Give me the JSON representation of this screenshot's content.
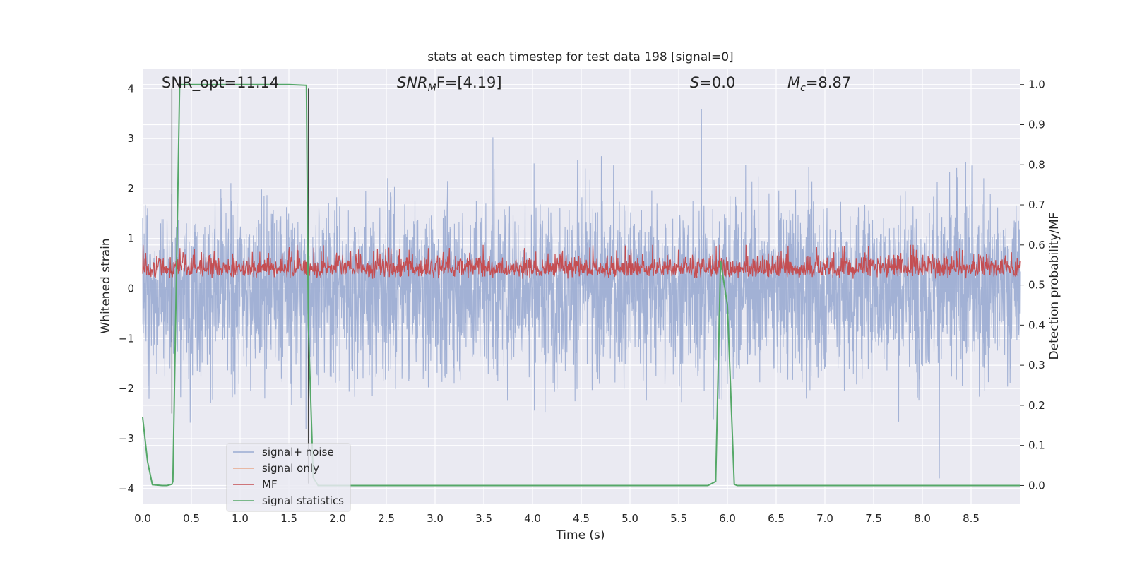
{
  "chart_data": {
    "type": "line",
    "title": "stats at each timestep for test data 198 [signal=0]",
    "xlabel": "Time (s)",
    "ylabel_left": "Whitened strain",
    "ylabel_right": "Detection probability/MF",
    "xlim": [
      0,
      9.0
    ],
    "ylim_left": [
      -4.3,
      4.4
    ],
    "ylim_right": [
      -0.045,
      1.04
    ],
    "xticks": [
      "0.0",
      "0.5",
      "1.0",
      "1.5",
      "2.0",
      "2.5",
      "3.0",
      "3.5",
      "4.0",
      "4.5",
      "5.0",
      "5.5",
      "6.0",
      "6.5",
      "7.0",
      "7.5",
      "8.0",
      "8.5"
    ],
    "yticks_left": [
      "4",
      "3",
      "2",
      "1",
      "0",
      "−1",
      "−2",
      "−3",
      "−4"
    ],
    "yticks_right": [
      "1.0",
      "0.9",
      "0.8",
      "0.7",
      "0.6",
      "0.5",
      "0.4",
      "0.3",
      "0.2",
      "0.1",
      "0.0"
    ],
    "grid": true,
    "legend_position": "lower-left",
    "annotations": {
      "snr_opt": "SNR_opt=11.14",
      "snr_mf_prefix": "SNR",
      "snr_mf_sub": "M",
      "snr_mf_suffix": "F=[4.19]",
      "s_label": "S",
      "s_value": "=0.0",
      "mc_label": "M",
      "mc_sub": "c",
      "mc_value": "=8.87"
    },
    "colors": {
      "noise": "#9aabd1",
      "signal_only": "#e8a88a",
      "mf": "#c44e52",
      "stats": "#55a868",
      "background": "#eaeaf2",
      "grid": "#ffffff"
    },
    "series": [
      {
        "name": "signal+ noise",
        "axis": "left",
        "description": "dense noise, roughly uniform amplitude about ±2 with peaks to about ±4",
        "amplitude_envelope": [
          -4.0,
          4.0
        ]
      },
      {
        "name": "signal only",
        "axis": "left",
        "values": []
      },
      {
        "name": "MF",
        "axis": "right",
        "description": "noisy band between about 0.5 and 0.6",
        "range": [
          0.49,
          0.6
        ]
      },
      {
        "name": "signal statistics",
        "axis": "right",
        "x": [
          0.0,
          0.05,
          0.1,
          0.2,
          0.25,
          0.3,
          0.31,
          0.38,
          0.5,
          1.0,
          1.5,
          1.68,
          1.7,
          1.75,
          1.8,
          2.0,
          3.0,
          4.0,
          5.0,
          5.8,
          5.88,
          5.93,
          6.0,
          6.07,
          6.1,
          7.0,
          8.0,
          9.0
        ],
        "y": [
          0.17,
          0.06,
          0.002,
          0.0,
          0.0,
          0.003,
          0.01,
          1.0,
          1.0,
          1.0,
          1.0,
          0.998,
          0.4,
          0.02,
          0.0,
          0.0,
          0.0,
          0.0,
          0.0,
          0.0,
          0.01,
          0.56,
          0.45,
          0.003,
          0.0,
          0.0,
          0.0,
          0.0
        ]
      }
    ],
    "vertical_markers": [
      {
        "x": 0.3,
        "y_from": -2.5,
        "y_to": 4.0,
        "color": "#444444"
      },
      {
        "x": 1.7,
        "y_from": -3.9,
        "y_to": 4.0,
        "color": "#444444"
      }
    ]
  },
  "legend": {
    "items": [
      {
        "label": "signal+ noise",
        "color": "#9aabd1"
      },
      {
        "label": "signal only",
        "color": "#e8a88a"
      },
      {
        "label": "MF",
        "color": "#c44e52"
      },
      {
        "label": "signal statistics",
        "color": "#55a868"
      }
    ]
  }
}
